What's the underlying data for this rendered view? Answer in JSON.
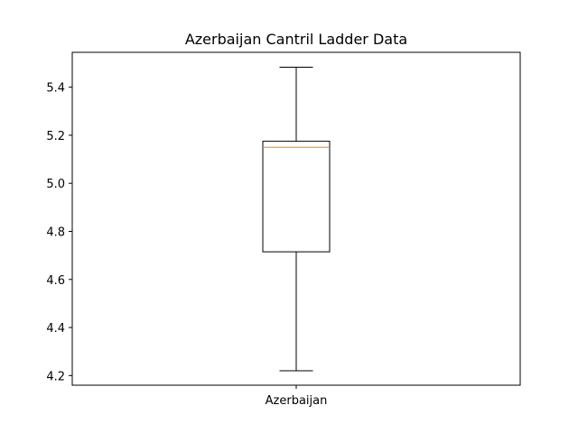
{
  "chart_data": {
    "type": "box",
    "title": "Azerbaijan Cantril Ladder Data",
    "xlabel": "",
    "ylabel": "",
    "categories": [
      "Azerbaijan"
    ],
    "boxes": [
      {
        "name": "Azerbaijan",
        "whisker_low": 4.22,
        "q1": 4.715,
        "median": 5.15,
        "q3": 5.175,
        "whisker_high": 5.483
      }
    ],
    "ylim": [
      4.16,
      5.545
    ],
    "yticks": [
      4.2,
      4.4,
      4.6,
      4.8,
      5.0,
      5.2,
      5.4
    ],
    "ytick_labels": [
      "4.2",
      "4.4",
      "4.6",
      "4.8",
      "5.0",
      "5.2",
      "5.4"
    ],
    "grid": false,
    "colors": {
      "box": "#000000",
      "median": "#ff7f0e",
      "whisker": "#000000",
      "axes": "#000000"
    }
  }
}
